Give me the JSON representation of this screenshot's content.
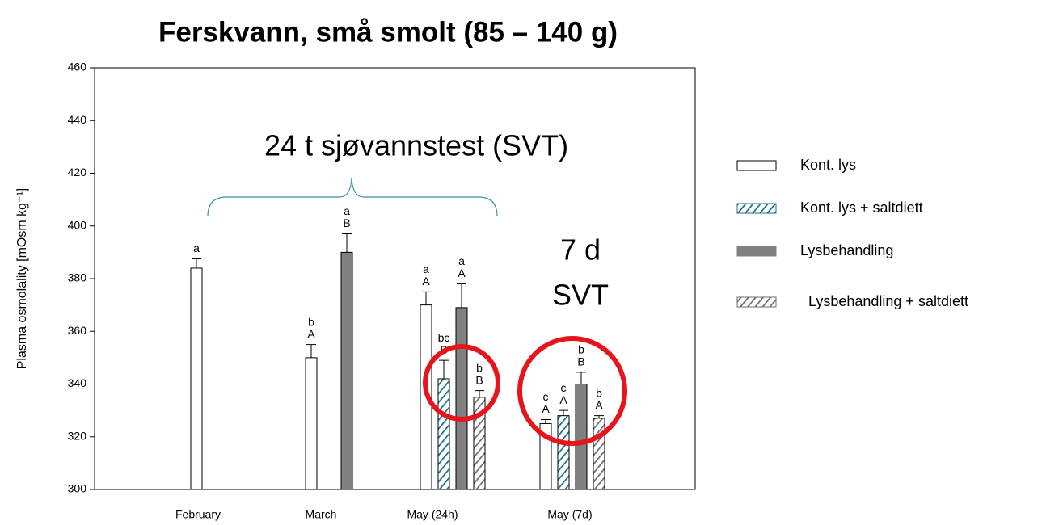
{
  "chart_data": {
    "type": "bar",
    "title": "Ferskvann, små smolt (85 – 140 g)",
    "ylabel": "Plasma osmolality [mOsm kg⁻¹]",
    "categories": [
      "February",
      "March",
      "May (24h)",
      "May (7d)"
    ],
    "series": [
      {
        "name": "Kont. lys",
        "color": "#ffffff",
        "pattern": "solid",
        "values": [
          384,
          350,
          370,
          325
        ],
        "errors": [
          3.5,
          5,
          5,
          1.5
        ],
        "letters": [
          [
            "a"
          ],
          [
            "b",
            "A"
          ],
          [
            "a",
            "A"
          ],
          [
            "c",
            "A"
          ]
        ]
      },
      {
        "name": "Kont. lys + saltdiett",
        "color": "#1f6f8b",
        "pattern": "hatch",
        "values": [
          null,
          null,
          342,
          328
        ],
        "errors": [
          null,
          null,
          7,
          2
        ],
        "letters": [
          null,
          null,
          [
            "bc",
            "B"
          ],
          [
            "c",
            "A"
          ]
        ]
      },
      {
        "name": "Lysbehandling",
        "color": "#808080",
        "pattern": "solid",
        "values": [
          null,
          390,
          369,
          340
        ],
        "errors": [
          null,
          7,
          9,
          4.5
        ],
        "letters": [
          null,
          [
            "a",
            "B"
          ],
          [
            "a",
            "A"
          ],
          [
            "b",
            "B"
          ]
        ]
      },
      {
        "name": "Lysbehandling + saltdiett",
        "color": "#6e6e6e",
        "pattern": "hatch",
        "values": [
          null,
          null,
          335,
          327
        ],
        "errors": [
          null,
          null,
          2.5,
          1
        ],
        "letters": [
          null,
          null,
          [
            "b",
            "B"
          ],
          [
            "b",
            "A"
          ]
        ]
      }
    ],
    "ylim": [
      300,
      460
    ],
    "yticks": [
      300,
      320,
      340,
      360,
      380,
      400,
      420,
      440,
      460
    ],
    "annotations": [
      "24 t sjøvannstest (SVT)",
      "7 d",
      "SVT"
    ]
  }
}
